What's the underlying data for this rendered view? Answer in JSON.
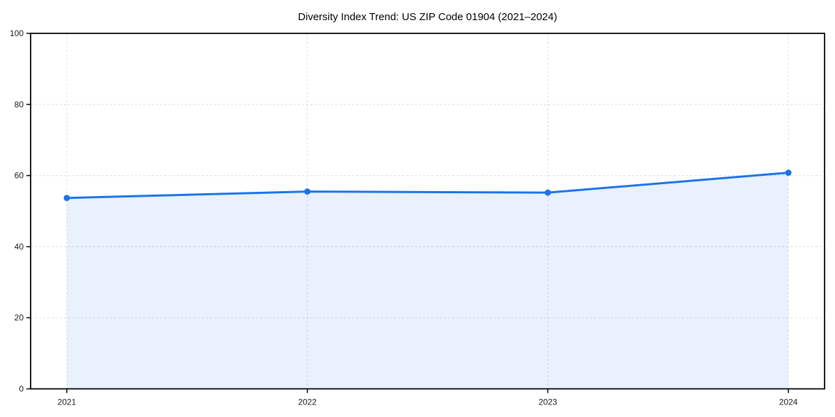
{
  "chart_data": {
    "type": "line",
    "title": "Diversity Index Trend: US ZIP Code 01904 (2021–2024)",
    "categories": [
      "2021",
      "2022",
      "2023",
      "2024"
    ],
    "series": [
      {
        "name": "Diversity Index",
        "values": [
          53.7,
          55.5,
          55.2,
          60.8
        ]
      }
    ],
    "xlabel": "",
    "ylabel": "",
    "ylim": [
      0,
      100
    ],
    "yticks": [
      0,
      20,
      40,
      60,
      80,
      100
    ],
    "grid": true,
    "grid_style": "dashed",
    "legend_position": "none",
    "area_fill": true,
    "marker": "circle",
    "colors": {
      "line": "#1a73e8",
      "marker": "#1a73e8",
      "area": "#1a73e8",
      "area_opacity": 0.1,
      "grid": "#dcdcdc",
      "axis": "#000000",
      "background": "#ffffff"
    }
  }
}
